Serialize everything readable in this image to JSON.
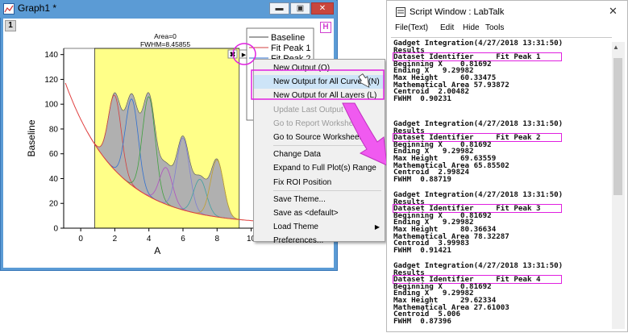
{
  "graph_window": {
    "title": "Graph1 *",
    "layer_number": "1",
    "h_badge": "H",
    "min_icon": "minimize-icon",
    "restore_icon": "restore-icon",
    "close_icon": "close-icon"
  },
  "plot": {
    "annotation_line1": "Area=0",
    "annotation_line2": "FWHM=8.45855",
    "xlabel": "A",
    "ylabel": "Baseline",
    "x_ticks": [
      "0",
      "2",
      "4",
      "6",
      "8",
      "10"
    ],
    "y_ticks": [
      "0",
      "20",
      "40",
      "60",
      "80",
      "100",
      "120",
      "140"
    ],
    "legend": [
      "Baseline",
      "Fit Peak 1",
      "Fit Peak 2"
    ],
    "roi_x_range": [
      0.81692,
      9.29982
    ],
    "colors": {
      "roi_fill": "#ffff88",
      "peak_fill": "#b0b0b0",
      "baseline": "#e04040",
      "highlight": "#e020e0",
      "peak_colors": [
        "#d04040",
        "#3070d0",
        "#40a040",
        "#b050c0",
        "#8080d0",
        "#40a0a0",
        "#c0a030",
        "#7040b0"
      ]
    },
    "peak_centers": [
      2.0,
      3.0,
      4.0,
      5.0,
      6.0,
      7.0,
      8.0
    ],
    "peak_heights": [
      60.3,
      69.6,
      80.4,
      29.6,
      58.0,
      28.0,
      46.0
    ]
  },
  "context_menu": {
    "items": [
      {
        "label": "New Output (O)",
        "disabled": false,
        "highlight": false,
        "arrow": false
      },
      {
        "label": "New Output for All Curves (N)",
        "disabled": false,
        "highlight": true,
        "arrow": false
      },
      {
        "label": "New Output for All Layers (L)",
        "disabled": false,
        "highlight": true,
        "arrow": false
      },
      {
        "label": "Update Last Output",
        "disabled": true,
        "highlight": false,
        "arrow": false
      },
      {
        "label": "Go to Report Worksheet",
        "disabled": true,
        "highlight": false,
        "arrow": false
      },
      {
        "label": "Go to Source Worksheet",
        "disabled": false,
        "highlight": false,
        "arrow": false
      },
      {
        "label": "Change Data",
        "disabled": false,
        "highlight": false,
        "arrow": true
      },
      {
        "label": "Expand to Full Plot(s) Range",
        "disabled": false,
        "highlight": false,
        "arrow": false
      },
      {
        "label": "Fix ROI Position",
        "disabled": false,
        "highlight": false,
        "arrow": false
      },
      {
        "label": "Save Theme...",
        "disabled": false,
        "highlight": false,
        "arrow": false
      },
      {
        "label": "Save as <default>",
        "disabled": false,
        "highlight": false,
        "arrow": false
      },
      {
        "label": "Load Theme",
        "disabled": false,
        "highlight": false,
        "arrow": true
      },
      {
        "label": "Preferences...",
        "disabled": false,
        "highlight": false,
        "arrow": false
      }
    ]
  },
  "script_window": {
    "title": "Script Window : LabTalk",
    "close_glyph": "✕",
    "menu": [
      "File(Text)",
      "Edit",
      "Hide",
      "Tools"
    ],
    "blocks": [
      {
        "header": "Gadget Integration(4/27/2018 13:31:50)",
        "results": "Results",
        "identifier": "Dataset Identifier     Fit Peak 1",
        "beginning": "Beginning X    0.81692",
        "ending": "Ending X   9.29982",
        "max_height": "Max Height     60.33475",
        "area": "Mathematical Area 57.93872",
        "centroid": "Centroid  2.00482",
        "fwhm": "FWHM  0.90231"
      },
      {
        "header": "Gadget Integration(4/27/2018 13:31:50)",
        "results": "Results",
        "identifier": "Dataset Identifier     Fit Peak 2",
        "beginning": "Beginning X    0.81692",
        "ending": "Ending X   9.29982",
        "max_height": "Max Height     69.63559",
        "area": "Mathematical Area 65.85502",
        "centroid": "Centroid  2.99824",
        "fwhm": "FWHM  0.88719"
      },
      {
        "header": "Gadget Integration(4/27/2018 13:31:50)",
        "results": "Results",
        "identifier": "Dataset Identifier     Fit Peak 3",
        "beginning": "Beginning X    0.81692",
        "ending": "Ending X   9.29982",
        "max_height": "Max Height     80.36634",
        "area": "Mathematical Area 78.32287",
        "centroid": "Centroid  3.99983",
        "fwhm": "FWHM  0.91421"
      },
      {
        "header": "Gadget Integration(4/27/2018 13:31:50)",
        "results": "Results",
        "identifier": "Dataset Identifier     Fit Peak 4",
        "beginning": "Beginning X    0.81692",
        "ending": "Ending X   9.29982",
        "max_height": "Max Height     29.62334",
        "area": "Mathematical Area 27.61003",
        "centroid": "Centroid  5.006",
        "fwhm": "FWHM  0.87396"
      }
    ]
  }
}
